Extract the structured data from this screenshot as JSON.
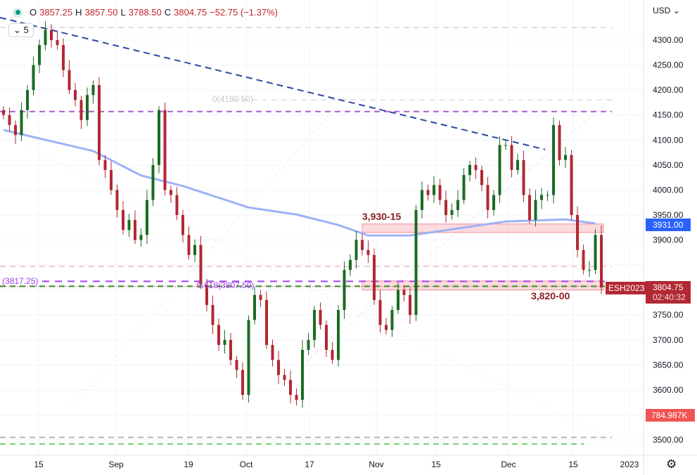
{
  "legend": {
    "open_label": "O",
    "open": "3857.25",
    "high_label": "H",
    "high": "3857.50",
    "low_label": "L",
    "low": "3788.50",
    "close_label": "C",
    "close": "3804.75",
    "change": "−52.75 (−1.37%)",
    "collapse_count": "5",
    "status_icon": "market-open-dot"
  },
  "currency": "USD",
  "symbol_tag": "ESH2023",
  "last_price": "3804.75",
  "countdown": "02:40:32",
  "ma_tag": "3931.00",
  "volume_tag": "784.987K",
  "annotations": {
    "fib_0": "0(4180.50)",
    "fib_618": "0.618(3807.50)",
    "level_left": "(3817.25)",
    "zone_upper": "3,930-15",
    "zone_lower": "3,820-00"
  },
  "colors": {
    "up": "#1b6b24",
    "down": "#b22833",
    "ma": "#9db2f5",
    "trend": "#2a4aa0",
    "purple": "#b05ad0",
    "zone": "#f5b8bd",
    "accent_blue": "#2962ff",
    "tag_red": "#b22833",
    "volume_red": "#f05454"
  },
  "chart_data": {
    "type": "candlestick",
    "ylim": [
      3480,
      4345
    ],
    "y_ticks": [
      "4300.00",
      "4250.00",
      "4200.00",
      "4150.00",
      "4100.00",
      "4050.00",
      "4000.00",
      "3950.00",
      "3900.00",
      "3750.00",
      "3700.00",
      "3650.00",
      "3600.00",
      "3500.00"
    ],
    "x_ticks": [
      "15",
      "Sep",
      "19",
      "Oct",
      "17",
      "Nov",
      "15",
      "Dec",
      "15",
      "2023"
    ],
    "closes": [
      4150,
      4130,
      4110,
      4160,
      4200,
      4250,
      4290,
      4320,
      4300,
      4290,
      4240,
      4200,
      4180,
      4140,
      4190,
      4210,
      4060,
      4040,
      4000,
      3960,
      3920,
      3940,
      3900,
      3910,
      3980,
      4050,
      4160,
      4000,
      3990,
      3950,
      3910,
      3870,
      3890,
      3810,
      3770,
      3730,
      3690,
      3700,
      3660,
      3640,
      3590,
      3740,
      3790,
      3780,
      3690,
      3660,
      3630,
      3620,
      3590,
      3580,
      3680,
      3700,
      3760,
      3730,
      3680,
      3660,
      3760,
      3840,
      3860,
      3900,
      3880,
      3870,
      3780,
      3730,
      3720,
      3760,
      3800,
      3790,
      3750,
      3960,
      4000,
      3990,
      4010,
      3980,
      3950,
      3960,
      3980,
      4030,
      4050,
      4040,
      4010,
      3960,
      3990,
      4090,
      4090,
      4040,
      4060,
      3990,
      3940,
      3980,
      3990,
      3990,
      4130,
      4060,
      4070,
      3950,
      3880,
      3840,
      3840,
      3910,
      3805
    ],
    "moving_average": [
      [
        0,
        4120
      ],
      [
        15,
        4078
      ],
      [
        23,
        4029
      ],
      [
        30,
        4008
      ],
      [
        41,
        3965
      ],
      [
        49,
        3951
      ],
      [
        56,
        3930
      ],
      [
        61,
        3909
      ],
      [
        68,
        3909
      ],
      [
        76,
        3923
      ],
      [
        84,
        3937
      ],
      [
        94,
        3941
      ],
      [
        99,
        3933
      ]
    ],
    "levels": {
      "purple_top": 4157,
      "fib_0": 4180.5,
      "grey_top": 4325,
      "pink": 3847,
      "purple_mid": 3817.25,
      "fib_618": 3807.5,
      "grey_bottom": 3505,
      "green_bottom": 3492
    },
    "zones": [
      [
        3915,
        3932
      ],
      [
        3800,
        3818
      ]
    ],
    "trendline": [
      [
        4345
      ],
      [
        4081
      ]
    ]
  }
}
